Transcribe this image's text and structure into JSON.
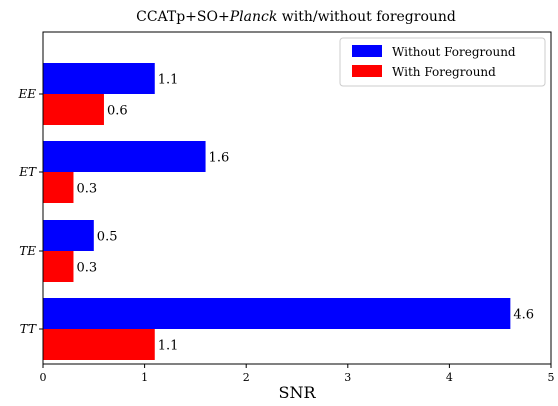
{
  "chart_data": {
    "type": "bar",
    "orientation": "horizontal",
    "title": {
      "prefix": "CCATp+SO+",
      "italic": "Planck",
      "suffix": " with/without foreground"
    },
    "xlabel": "SNR",
    "ylabel": "",
    "xlim": [
      0,
      5
    ],
    "xticks": [
      0,
      1,
      2,
      3,
      4,
      5
    ],
    "categories": [
      "EE",
      "ET",
      "TE",
      "TT"
    ],
    "series": [
      {
        "name": "Without Foreground",
        "color": "#0000ff",
        "values": [
          1.1,
          1.6,
          0.5,
          4.6
        ],
        "labels": [
          "1.1",
          "1.6",
          "0.5",
          "4.6"
        ]
      },
      {
        "name": "With Foreground",
        "color": "#ff0000",
        "values": [
          0.6,
          0.3,
          0.3,
          1.1
        ],
        "labels": [
          "0.6",
          "0.3",
          "0.3",
          "1.1"
        ]
      }
    ],
    "legend_position": "top-right",
    "grid": false
  }
}
